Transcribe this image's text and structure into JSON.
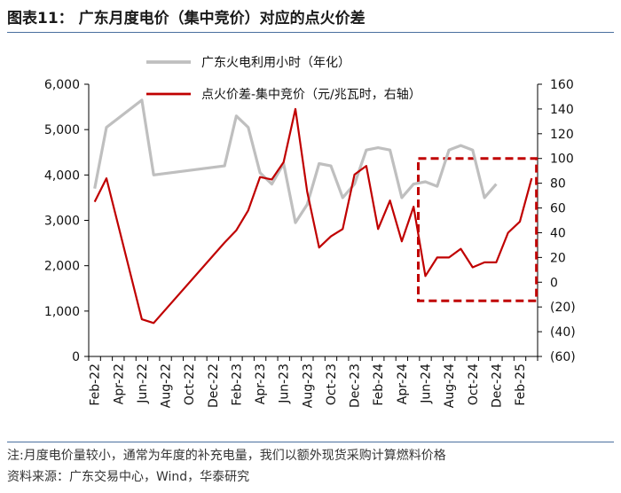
{
  "title": "图表11： 广东月度电价（集中竞价）对应的点火价差",
  "note": "注:月度电价量较小，通常为年度的补充电量，我们以额外现货采购计算燃料价格",
  "source": "资料来源：广东交易中心，Wind，华泰研究",
  "colors": {
    "gray_series": "#bfbfbf",
    "red_series": "#c00000",
    "highlight_box": "#c00000"
  },
  "chart_data": {
    "type": "line",
    "x_tick_labels": [
      "Feb-22",
      "Apr-22",
      "Jun-22",
      "Aug-22",
      "Oct-22",
      "Dec-22",
      "Feb-23",
      "Apr-23",
      "Jun-23",
      "Aug-23",
      "Oct-23",
      "Dec-23",
      "Feb-24",
      "Apr-24",
      "Jun-24",
      "Aug-24",
      "Oct-24",
      "Dec-24",
      "Feb-25"
    ],
    "left_axis": {
      "ylim": [
        0,
        6000
      ],
      "ticks": [
        0,
        1000,
        2000,
        3000,
        4000,
        5000,
        6000
      ],
      "tick_labels": [
        "0",
        "1,000",
        "2,000",
        "3,000",
        "4,000",
        "5,000",
        "6,000"
      ]
    },
    "right_axis": {
      "ylim": [
        -60,
        160
      ],
      "ticks": [
        -60,
        -40,
        -20,
        0,
        20,
        40,
        60,
        80,
        100,
        120,
        140,
        160
      ],
      "tick_labels": [
        "(60)",
        "(40)",
        "(20)",
        "0",
        "20",
        "40",
        "60",
        "80",
        "100",
        "120",
        "140",
        "160"
      ]
    },
    "series": [
      {
        "name": "广东火电利用小时（年化）",
        "axis": "left",
        "points": [
          {
            "x": "Feb-22",
            "y": 3700
          },
          {
            "x": "Mar-22",
            "y": 5050
          },
          {
            "x": "Jun-22",
            "y": 5650
          },
          {
            "x": "Jul-22",
            "y": 4000
          },
          {
            "x": "Jan-23",
            "y": 4200
          },
          {
            "x": "Feb-23",
            "y": 5300
          },
          {
            "x": "Mar-23",
            "y": 5050
          },
          {
            "x": "Apr-23",
            "y": 4050
          },
          {
            "x": "May-23",
            "y": 3800
          },
          {
            "x": "Jun-23",
            "y": 4250
          },
          {
            "x": "Jul-23",
            "y": 2950
          },
          {
            "x": "Aug-23",
            "y": 3350
          },
          {
            "x": "Sep-23",
            "y": 4250
          },
          {
            "x": "Oct-23",
            "y": 4200
          },
          {
            "x": "Nov-23",
            "y": 3500
          },
          {
            "x": "Dec-23",
            "y": 3800
          },
          {
            "x": "Jan-24",
            "y": 4550
          },
          {
            "x": "Feb-24",
            "y": 4600
          },
          {
            "x": "Mar-24",
            "y": 4550
          },
          {
            "x": "Apr-24",
            "y": 3500
          },
          {
            "x": "May-24",
            "y": 3800
          },
          {
            "x": "Jun-24",
            "y": 3850
          },
          {
            "x": "Jul-24",
            "y": 3750
          },
          {
            "x": "Aug-24",
            "y": 4550
          },
          {
            "x": "Sep-24",
            "y": 4650
          },
          {
            "x": "Oct-24",
            "y": 4550
          },
          {
            "x": "Nov-24",
            "y": 3500
          },
          {
            "x": "Dec-24",
            "y": 3800
          }
        ]
      },
      {
        "name": "点火价差-集中竞价（元/兆瓦时，右轴）",
        "axis": "right",
        "points": [
          {
            "x": "Feb-22",
            "y": 65
          },
          {
            "x": "Mar-22",
            "y": 84
          },
          {
            "x": "Jun-22",
            "y": -30
          },
          {
            "x": "Jul-22",
            "y": -33
          },
          {
            "x": "Jan-23",
            "y": 32
          },
          {
            "x": "Feb-23",
            "y": 42
          },
          {
            "x": "Mar-23",
            "y": 58
          },
          {
            "x": "Apr-23",
            "y": 85
          },
          {
            "x": "May-23",
            "y": 83
          },
          {
            "x": "Jun-23",
            "y": 97
          },
          {
            "x": "Jul-23",
            "y": 140
          },
          {
            "x": "Aug-23",
            "y": 73
          },
          {
            "x": "Sep-23",
            "y": 28
          },
          {
            "x": "Oct-23",
            "y": 37
          },
          {
            "x": "Nov-23",
            "y": 43
          },
          {
            "x": "Dec-23",
            "y": 87
          },
          {
            "x": "Jan-24",
            "y": 94
          },
          {
            "x": "Feb-24",
            "y": 43
          },
          {
            "x": "Mar-24",
            "y": 66
          },
          {
            "x": "Apr-24",
            "y": 33
          },
          {
            "x": "May-24",
            "y": 61
          },
          {
            "x": "Jun-24",
            "y": 5
          },
          {
            "x": "Jul-24",
            "y": 20
          },
          {
            "x": "Aug-24",
            "y": 20
          },
          {
            "x": "Sep-24",
            "y": 27
          },
          {
            "x": "Oct-24",
            "y": 12
          },
          {
            "x": "Nov-24",
            "y": 16
          },
          {
            "x": "Dec-24",
            "y": 16
          },
          {
            "x": "Jan-25",
            "y": 40
          },
          {
            "x": "Feb-25",
            "y": 49
          },
          {
            "x": "Mar-25",
            "y": 84
          }
        ]
      }
    ],
    "highlight_region": {
      "x_from": "Jun-24",
      "x_to": "Mar-25",
      "y_from": -15,
      "y_to": 100,
      "axis": "right",
      "style": "dashed"
    },
    "legend_position": "top-center",
    "grid": false
  }
}
